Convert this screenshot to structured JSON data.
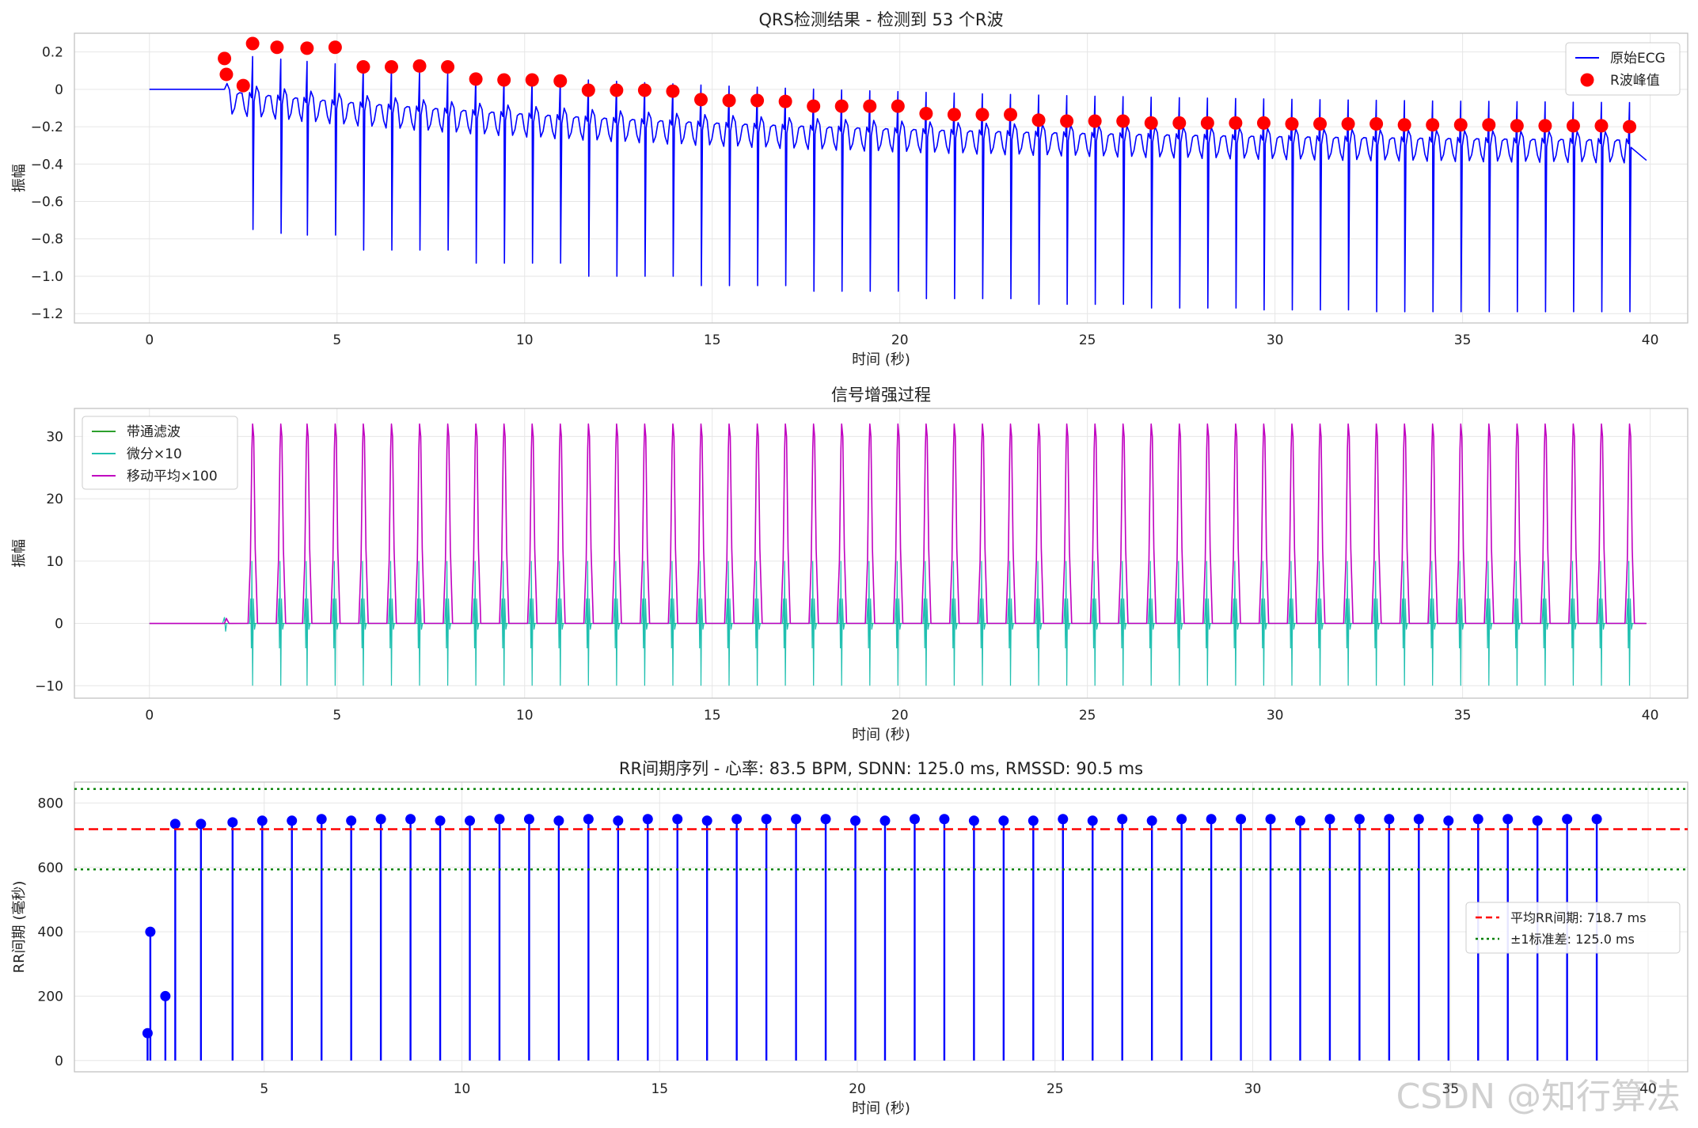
{
  "watermark": "CSDN @知行算法",
  "chart_data": [
    {
      "type": "line",
      "title": "QRS检测结果 - 检测到 53 个R波",
      "xlabel": "时间 (秒)",
      "ylabel": "振幅",
      "xlim": [
        -2,
        41
      ],
      "ylim": [
        -1.25,
        0.3
      ],
      "xticks": [
        0,
        5,
        10,
        15,
        20,
        25,
        30,
        35,
        40
      ],
      "yticks": [
        0.2,
        0.0,
        -0.2,
        -0.4,
        -0.6,
        -0.8,
        -1.0,
        -1.2
      ],
      "grid": true,
      "legend": "top-right",
      "series": [
        {
          "name": "原始ECG",
          "color": "#0000ff",
          "style": "line",
          "description_values": {
            "baseline_end": 2.0,
            "beat_times": [
              2.75,
              3.5,
              4.2,
              4.95,
              5.7,
              6.45,
              7.2,
              7.95,
              8.7,
              9.45,
              10.2,
              10.95,
              11.7,
              12.45,
              13.2,
              13.95,
              14.7,
              15.45,
              16.2,
              16.95,
              17.7,
              18.45,
              19.2,
              19.95,
              20.7,
              21.45,
              22.2,
              22.95,
              23.7,
              24.45,
              25.2,
              25.95,
              26.7,
              27.45,
              28.2,
              28.95,
              29.7,
              30.45,
              31.2,
              31.95,
              32.7,
              33.45,
              34.2,
              34.95,
              35.7,
              36.45,
              37.2,
              37.95,
              38.7,
              39.45
            ],
            "trough_depth": [
              -0.75,
              -0.77,
              -0.78,
              -0.78,
              -0.86,
              -0.86,
              -0.86,
              -0.86,
              -0.93,
              -0.93,
              -0.93,
              -0.93,
              -1.0,
              -1.0,
              -1.0,
              -1.0,
              -1.05,
              -1.05,
              -1.05,
              -1.05,
              -1.08,
              -1.08,
              -1.08,
              -1.08,
              -1.12,
              -1.12,
              -1.12,
              -1.12,
              -1.15,
              -1.15,
              -1.15,
              -1.15,
              -1.17,
              -1.17,
              -1.17,
              -1.17,
              -1.18,
              -1.18,
              -1.18,
              -1.18,
              -1.19,
              -1.19,
              -1.19,
              -1.19,
              -1.19,
              -1.19,
              -1.19,
              -1.19,
              -1.19,
              -1.19
            ]
          }
        },
        {
          "name": "R波峰值",
          "color": "#ff0000",
          "style": "marker",
          "x": [
            2.0,
            2.05,
            2.5,
            2.75,
            3.4,
            4.2,
            4.95,
            5.7,
            6.45,
            7.2,
            7.95,
            8.7,
            9.45,
            10.2,
            10.95,
            11.7,
            12.45,
            13.2,
            13.95,
            14.7,
            15.45,
            16.2,
            16.95,
            17.7,
            18.45,
            19.2,
            19.95,
            20.7,
            21.45,
            22.2,
            22.95,
            23.7,
            24.45,
            25.2,
            25.95,
            26.7,
            27.45,
            28.2,
            28.95,
            29.7,
            30.45,
            31.2,
            31.95,
            32.7,
            33.45,
            34.2,
            34.95,
            35.7,
            36.45,
            37.2,
            37.95,
            38.7,
            39.45
          ],
          "y": [
            0.165,
            0.08,
            0.02,
            0.245,
            0.225,
            0.22,
            0.225,
            0.12,
            0.12,
            0.125,
            0.12,
            0.055,
            0.05,
            0.05,
            0.045,
            -0.005,
            -0.005,
            -0.005,
            -0.01,
            -0.055,
            -0.06,
            -0.06,
            -0.065,
            -0.09,
            -0.09,
            -0.09,
            -0.09,
            -0.13,
            -0.135,
            -0.135,
            -0.135,
            -0.165,
            -0.17,
            -0.17,
            -0.17,
            -0.18,
            -0.18,
            -0.18,
            -0.18,
            -0.18,
            -0.185,
            -0.185,
            -0.185,
            -0.185,
            -0.19,
            -0.19,
            -0.19,
            -0.19,
            -0.195,
            -0.195,
            -0.195,
            -0.195,
            -0.2
          ]
        }
      ]
    },
    {
      "type": "line",
      "title": "信号增强过程",
      "xlabel": "时间 (秒)",
      "ylabel": "振幅",
      "xlim": [
        -2,
        41
      ],
      "ylim": [
        -12,
        34.5
      ],
      "xticks": [
        0,
        5,
        10,
        15,
        20,
        25,
        30,
        35,
        40
      ],
      "yticks": [
        30,
        20,
        10,
        0,
        -10
      ],
      "grid": true,
      "legend": "top-left",
      "series": [
        {
          "name": "带通滤波",
          "color": "#2ca02c",
          "peak_amplitude": 1.0
        },
        {
          "name": "微分×10",
          "color": "#20c0b0",
          "peak_amplitude": 10,
          "trough_amplitude": -10
        },
        {
          "name": "移动平均×100",
          "color": "#c000c0",
          "peak_amplitude": 32,
          "beat_times": [
            2.75,
            3.5,
            4.2,
            4.95,
            5.7,
            6.45,
            7.2,
            7.95,
            8.7,
            9.45,
            10.2,
            10.95,
            11.7,
            12.45,
            13.2,
            13.95,
            14.7,
            15.45,
            16.2,
            16.95,
            17.7,
            18.45,
            19.2,
            19.95,
            20.7,
            21.45,
            22.2,
            22.95,
            23.7,
            24.45,
            25.2,
            25.95,
            26.7,
            27.45,
            28.2,
            28.95,
            29.7,
            30.45,
            31.2,
            31.95,
            32.7,
            33.45,
            34.2,
            34.95,
            35.7,
            36.45,
            37.2,
            37.95,
            38.7,
            39.45
          ]
        }
      ]
    },
    {
      "type": "stem",
      "title": "RR间期序列 - 心率: 83.5 BPM, SDNN: 125.0 ms, RMSSD: 90.5 ms",
      "xlabel": "时间 (秒)",
      "ylabel": "RR间期 (毫秒)",
      "xlim": [
        0.2,
        41
      ],
      "ylim": [
        -35,
        865
      ],
      "xticks": [
        5,
        10,
        15,
        20,
        25,
        30,
        35,
        40
      ],
      "yticks": [
        800,
        600,
        400,
        200,
        0
      ],
      "grid": true,
      "legend": "center-right",
      "series": [
        {
          "name": "RR",
          "color": "#0000ff",
          "x": [
            2.05,
            2.12,
            2.5,
            2.75,
            3.4,
            4.2,
            4.95,
            5.7,
            6.45,
            7.2,
            7.95,
            8.7,
            9.45,
            10.2,
            10.95,
            11.7,
            12.45,
            13.2,
            13.95,
            14.7,
            15.45,
            16.2,
            16.95,
            17.7,
            18.45,
            19.2,
            19.95,
            20.7,
            21.45,
            22.2,
            22.95,
            23.7,
            24.45,
            25.2,
            25.95,
            26.7,
            27.45,
            28.2,
            28.95,
            29.7,
            30.45,
            31.2,
            31.95,
            32.7,
            33.45,
            34.2,
            34.95,
            35.7,
            36.45,
            37.2,
            37.95,
            38.7
          ],
          "y": [
            85,
            400,
            200,
            735,
            735,
            740,
            745,
            745,
            750,
            745,
            750,
            750,
            745,
            745,
            750,
            750,
            745,
            750,
            745,
            750,
            750,
            745,
            750,
            750,
            750,
            750,
            745,
            745,
            750,
            750,
            745,
            745,
            745,
            750,
            745,
            750,
            745,
            750,
            750,
            750,
            750,
            745,
            750,
            750,
            750,
            750,
            745,
            750,
            750,
            745,
            750,
            750
          ]
        },
        {
          "name": "平均RR间期: 718.7 ms",
          "color": "#ff0000",
          "style": "dashed",
          "value": 718.7
        },
        {
          "name": "±1标准差: 125.0 ms",
          "color": "#008000",
          "style": "dotted",
          "values": [
            593.7,
            843.7
          ]
        }
      ]
    }
  ]
}
